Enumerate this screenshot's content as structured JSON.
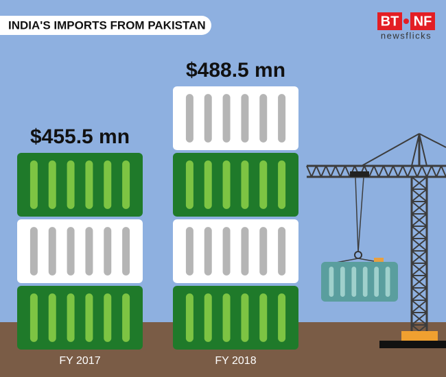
{
  "header": {
    "title": "INDIA'S IMPORTS FROM PAKISTAN"
  },
  "logo": {
    "left": "BT",
    "right": "NF",
    "tagline": "newsflicks"
  },
  "columns": [
    {
      "label": "FY 2017",
      "value_label": "$455.5 mn"
    },
    {
      "label": "FY 2018",
      "value_label": "$488.5 mn"
    }
  ]
}
